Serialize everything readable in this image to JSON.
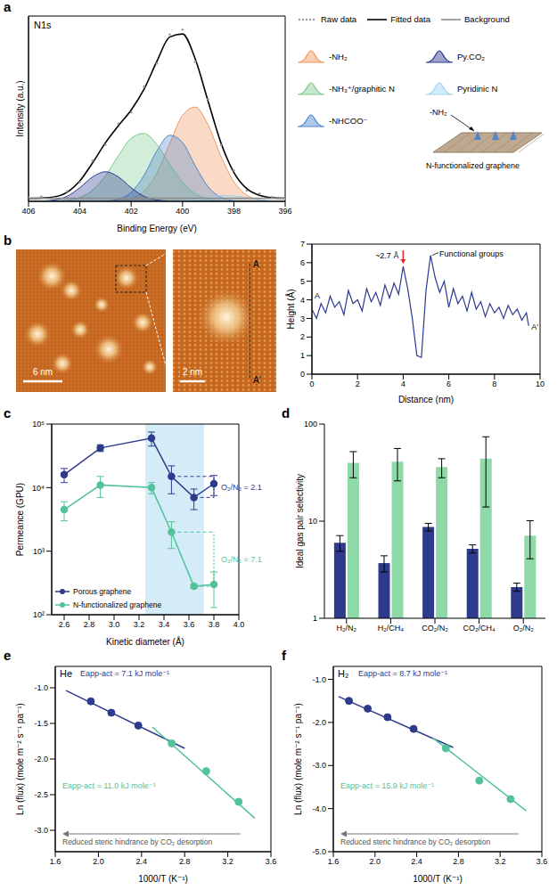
{
  "chart_data": [
    {
      "type": "line",
      "panel": "a",
      "title": "N1s",
      "x_label": "Binding Energy (eV)",
      "y_label": "Intensity (a.u.)",
      "x": [
        406,
        405.5,
        405,
        404.5,
        404,
        403.5,
        403,
        402.5,
        402,
        401.5,
        401,
        400.5,
        400,
        399.5,
        399,
        398.5,
        398,
        397.5,
        397,
        396.5,
        396
      ],
      "xlim": [
        406,
        396
      ],
      "xticks": [
        406,
        404,
        402,
        400,
        398,
        396
      ],
      "ylim": [
        0,
        125
      ],
      "tick_labels": "x",
      "legend": "right",
      "series": [
        {
          "name": "Raw data",
          "type": "scatter",
          "marker": "dot",
          "color": "#9a9a9a",
          "values": [
            2.5,
            3.1,
            2.4,
            6.8,
            12.9,
            27.5,
            38.2,
            52.4,
            60.1,
            77.3,
            93.0,
            112.5,
            115.8,
            94.1,
            68.9,
            38.0,
            20.8,
            7.2,
            5.3,
            3.0,
            1.6
          ]
        },
        {
          "name": "Fitted data",
          "type": "line",
          "line_style": "solid",
          "color": "#000000",
          "values": [
            2.0,
            2.2,
            3.0,
            6.1,
            13.8,
            26.1,
            39.6,
            51.0,
            61.6,
            75.6,
            94.4,
            110.8,
            112.9,
            95.9,
            67.3,
            39.3,
            19.5,
            8.6,
            4.1,
            2.5,
            2.1
          ]
        },
        {
          "name": "Background",
          "type": "line",
          "line_style": "solid",
          "color": "#8c8c8c",
          "values": [
            2,
            2,
            2,
            2,
            2,
            2,
            2,
            2,
            2,
            2,
            2,
            2,
            2,
            2,
            2,
            2,
            2,
            2,
            2,
            2,
            2
          ]
        },
        {
          "name": "-NH₂",
          "type": "area",
          "color": "#f2965c",
          "values": [
            0,
            0,
            0,
            0,
            0,
            0,
            0.1,
            0.4,
            1.8,
            6.9,
            19.1,
            38.8,
            58.0,
            63.6,
            51.3,
            30.3,
            13.2,
            4.2,
            1.0,
            0.2,
            0
          ]
        },
        {
          "name": "-NH₃⁺/graphitic N",
          "type": "area",
          "color": "#7fca8e",
          "values": [
            0,
            0,
            0.1,
            0.7,
            2.6,
            7.6,
            17.3,
            30.7,
            42.5,
            45.8,
            38.4,
            25.1,
            12.8,
            5.1,
            1.6,
            0.4,
            0.1,
            0,
            0,
            0,
            0
          ]
        },
        {
          "name": "-NHCOO⁻",
          "type": "area",
          "color": "#4f86cc",
          "values": [
            0,
            0,
            0,
            0,
            0,
            0,
            0.2,
            1.4,
            6.1,
            17.5,
            34.0,
            44.6,
            39.7,
            23.9,
            9.7,
            2.7,
            0.5,
            0,
            0,
            0,
            0
          ]
        },
        {
          "name": "Py.CO₂",
          "type": "area",
          "color": "#2b3a8f",
          "values": [
            0,
            0.2,
            0.9,
            3.4,
            9.2,
            16.5,
            20.0,
            16.5,
            9.2,
            3.4,
            0.9,
            0.2,
            0,
            0,
            0,
            0,
            0,
            0,
            0,
            0,
            0
          ]
        },
        {
          "name": "Pyridinic N",
          "type": "area",
          "color": "#9fd4ef",
          "values": [
            0,
            0,
            0,
            0,
            0,
            0,
            0,
            0,
            0,
            0,
            0,
            0.1,
            0.4,
            1.3,
            2.7,
            3.9,
            3.7,
            2.4,
            1.1,
            0.3,
            0.1
          ]
        }
      ],
      "schematic": {
        "title": "N-functionalized graphene",
        "group": "-NH₂"
      }
    },
    {
      "type": "image",
      "panel": "b",
      "scale_bars": [
        "6 nm",
        "2 nm"
      ],
      "line_ends": [
        "A",
        "A'"
      ]
    },
    {
      "type": "line",
      "x_label": "Distance (nm)",
      "y_label": "Height (Å)",
      "color": "#2b3990",
      "x": [
        0,
        0.2,
        0.4,
        0.6,
        0.8,
        1,
        1.2,
        1.4,
        1.6,
        1.8,
        2,
        2.2,
        2.4,
        2.6,
        2.8,
        3,
        3.2,
        3.4,
        3.6,
        3.8,
        4,
        4.2,
        4.4,
        4.6,
        4.8,
        5,
        5.2,
        5.4,
        5.6,
        5.8,
        6,
        6.2,
        6.4,
        6.6,
        6.8,
        7,
        7.2,
        7.4,
        7.6,
        7.8,
        8,
        8.2,
        8.4,
        8.6,
        8.8,
        9,
        9.2,
        9.4,
        9.5
      ],
      "values": [
        3.5,
        3.0,
        3.8,
        3.3,
        4.2,
        3.6,
        3.9,
        3.2,
        4.5,
        3.8,
        4.0,
        3.4,
        4.6,
        3.9,
        4.4,
        3.7,
        4.8,
        4.1,
        4.9,
        4.3,
        5.8,
        4.6,
        3.0,
        1.0,
        0.9,
        4.5,
        6.4,
        5.2,
        4.4,
        5.0,
        3.6,
        4.6,
        3.8,
        4.2,
        3.4,
        4.4,
        3.5,
        3.9,
        3.1,
        3.8,
        3.3,
        3.6,
        3.0,
        3.7,
        3.2,
        3.5,
        2.9,
        3.3,
        2.6
      ],
      "xlim": [
        0,
        10
      ],
      "xticks": [
        0,
        2,
        4,
        6,
        8,
        10
      ],
      "ylim": [
        0,
        7
      ],
      "yticks": [
        0,
        1,
        2,
        3,
        4,
        5,
        6,
        7
      ],
      "end_labels": [
        "A",
        "A'"
      ],
      "annotations": [
        "~2.7 Å",
        "Functional groups"
      ]
    },
    {
      "type": "line",
      "panel": "c",
      "x_label": "Kinetic diameter (Å)",
      "y_label": "Permeance (GPU)",
      "log": "y",
      "x": [
        2.6,
        2.89,
        3.3,
        3.46,
        3.64,
        3.8
      ],
      "xlim": [
        2.5,
        4.0
      ],
      "xticks": [
        2.6,
        2.8,
        {
          "value": 3,
          "label": "3.0"
        },
        3.2,
        3.4,
        3.6,
        3.8,
        {
          "value": 4,
          "label": "4.0"
        }
      ],
      "ylim": [
        100,
        100000
      ],
      "yticks": [
        {
          "value": 100,
          "label": "10²"
        },
        {
          "value": 1000,
          "label": "10³"
        },
        {
          "value": 10000,
          "label": "10⁴"
        },
        {
          "value": 100000,
          "label": "10⁵"
        }
      ],
      "highlight_x": [
        3.25,
        3.72
      ],
      "legend": "lower left",
      "series": [
        {
          "name": "Porous graphene",
          "color": "#2e3b8c",
          "marker": "circle",
          "values": [
            16000,
            42000,
            60000,
            15000,
            7000,
            11500
          ],
          "errors": [
            4000,
            5000,
            15000,
            7000,
            2500,
            4000
          ],
          "annotation": "O₂/N₂ = 2.1"
        },
        {
          "name": "N-functionalized graphene",
          "color": "#52c29a",
          "marker": "circle",
          "values": [
            4500,
            11000,
            10000,
            2000,
            280,
            300
          ],
          "errors": [
            1500,
            4000,
            2000,
            900,
            20,
            170
          ],
          "annotation": "O₂/N₂ = 7.1"
        }
      ]
    },
    {
      "type": "bar",
      "panel": "d",
      "y_label": "Ideal gas pair selectivity",
      "log": "y",
      "categories": [
        "H₂/N₂",
        "H₂/CH₄",
        "CO₂/N₂",
        "CO₂/CH₄",
        "O₂/N₂"
      ],
      "ylim": [
        1,
        100
      ],
      "yticks": [
        1,
        10,
        100
      ],
      "series": [
        {
          "color": "#2e3b8c",
          "values": [
            6,
            3.7,
            8.7,
            5.2,
            2.1
          ],
          "errors": [
            1.1,
            0.7,
            0.8,
            0.5,
            0.2
          ]
        },
        {
          "color": "#8fd9a8",
          "values": [
            40,
            41,
            36,
            44,
            7.1
          ],
          "errors": [
            12,
            15,
            8,
            30,
            3
          ]
        }
      ]
    },
    {
      "type": "scatter",
      "panel": "e",
      "title": "He",
      "x_label": "1000/T (K⁻¹)",
      "y_label": "Ln (flux) (mole m⁻² s⁻¹ pa⁻¹)",
      "xlim": [
        1.6,
        3.6
      ],
      "xticks": [
        1.6,
        {
          "value": 2,
          "label": "2.0"
        },
        2.4,
        2.8,
        3.2,
        3.6
      ],
      "ylim": [
        -3.3,
        -0.7
      ],
      "yticks": [
        {
          "value": -1,
          "label": "-1.0"
        },
        -1.5,
        {
          "value": -2,
          "label": "-2.0"
        },
        -2.5,
        {
          "value": -3,
          "label": "-3.0"
        }
      ],
      "annotation": "Reduced steric hindrance by CO₂ desorption",
      "series": [
        {
          "type": "scatter",
          "marker": "circle",
          "color": "#2e3b8c",
          "x": [
            1.93,
            2.12,
            2.37
          ],
          "values": [
            -1.19,
            -1.35,
            -1.53
          ]
        },
        {
          "type": "scatter",
          "marker": "circle",
          "color": "#52c29a",
          "x": [
            2.68,
            3.0,
            3.3
          ],
          "values": [
            -1.78,
            -2.17,
            -2.6
          ]
        },
        {
          "type": "line",
          "line_style": "solid",
          "color": "#2e3b8c",
          "x": [
            1.7,
            2.8
          ],
          "values": [
            -1.04,
            -1.85
          ],
          "label": "Eapp-act = 7.1 kJ mole⁻¹"
        },
        {
          "type": "line",
          "line_style": "solid",
          "color": "#52c29a",
          "x": [
            2.5,
            3.45
          ],
          "values": [
            -1.55,
            -2.83
          ],
          "label": "Eapp-act = 11.0 kJ mole⁻¹"
        }
      ]
    },
    {
      "type": "scatter",
      "panel": "f",
      "title": "H₂",
      "x_label": "1000/T (K⁻¹)",
      "y_label": "Ln (flux) (mole m⁻² s⁻¹ pa⁻¹)",
      "xlim": [
        1.6,
        3.6
      ],
      "xticks": [
        1.6,
        {
          "value": 2,
          "label": "2.0"
        },
        2.4,
        2.8,
        3.2,
        3.6
      ],
      "ylim": [
        -5.0,
        -0.7
      ],
      "yticks": [
        {
          "value": -1,
          "label": "-1.0"
        },
        {
          "value": -2,
          "label": "-2.0"
        },
        {
          "value": -3,
          "label": "-3.0"
        },
        {
          "value": -4,
          "label": "-4.0"
        },
        {
          "value": -5,
          "label": "-5.0"
        }
      ],
      "annotation": "Reduced steric hindrance by CO₂ desorption",
      "series": [
        {
          "type": "scatter",
          "marker": "circle",
          "color": "#2e3b8c",
          "x": [
            1.75,
            1.93,
            2.12,
            2.37
          ],
          "values": [
            -1.5,
            -1.68,
            -1.88,
            -2.15
          ]
        },
        {
          "type": "scatter",
          "marker": "circle",
          "color": "#52c29a",
          "x": [
            2.68,
            3.0,
            3.3
          ],
          "values": [
            -2.6,
            -3.35,
            -3.78
          ]
        },
        {
          "type": "line",
          "line_style": "solid",
          "color": "#2e3b8c",
          "x": [
            1.65,
            2.75
          ],
          "values": [
            -1.4,
            -2.58
          ],
          "label": "Eapp-act = 8.7 kJ mole⁻¹"
        },
        {
          "type": "line",
          "line_style": "solid",
          "color": "#52c29a",
          "x": [
            2.55,
            3.45
          ],
          "values": [
            -2.35,
            -4.05
          ],
          "label": "Eapp-act = 15.9 kJ mole⁻¹"
        }
      ]
    }
  ]
}
